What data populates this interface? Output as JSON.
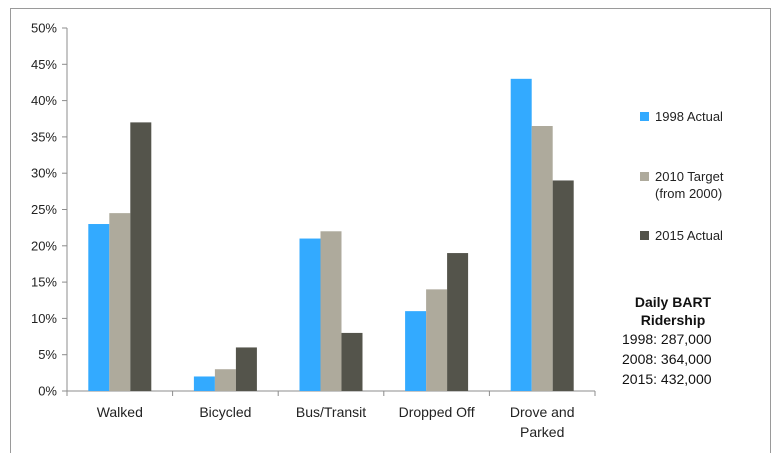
{
  "chart_data": {
    "type": "bar",
    "categories": [
      "Walked",
      "Bicycled",
      "Bus/Transit",
      "Dropped Off",
      "Drove and Parked"
    ],
    "series": [
      {
        "name": "1998 Actual",
        "values": [
          23,
          2,
          21,
          11,
          43
        ],
        "color": "#33aaff"
      },
      {
        "name": "2010 Target (from 2000)",
        "values": [
          24.5,
          3,
          22,
          14,
          36.5
        ],
        "color": "#aeaa9c"
      },
      {
        "name": "2015 Actual",
        "values": [
          37,
          6,
          8,
          19,
          29
        ],
        "color": "#54544b"
      }
    ],
    "ylim": [
      0,
      50
    ],
    "yticks": [
      "0%",
      "5%",
      "10%",
      "15%",
      "20%",
      "25%",
      "30%",
      "35%",
      "40%",
      "45%",
      "50%"
    ],
    "grid": false,
    "legend": "right"
  },
  "legend": {
    "s1": "1998 Actual",
    "s2_line1": "2010 Target",
    "s2_line2": "(from 2000)",
    "s3": "2015 Actual"
  },
  "info": {
    "title_line1": "Daily BART",
    "title_line2": "Ridership",
    "lines": [
      "1998: 287,000",
      "2008: 364,000",
      "2015: 432,000"
    ]
  },
  "category_labels": [
    [
      "Walked"
    ],
    [
      "Bicycled"
    ],
    [
      "Bus/Transit"
    ],
    [
      "Dropped Off"
    ],
    [
      "Drove and",
      "Parked"
    ]
  ]
}
